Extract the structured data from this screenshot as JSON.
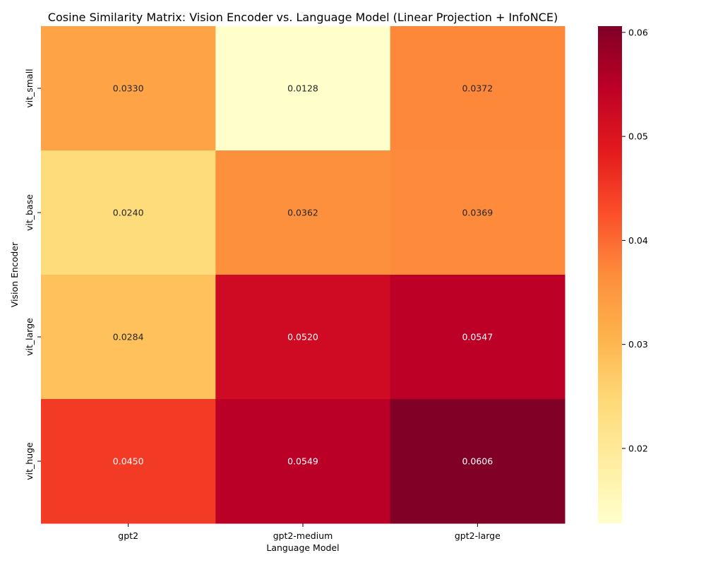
{
  "chart_data": {
    "type": "heatmap",
    "title": "Cosine Similarity Matrix: Vision Encoder vs. Language Model (Linear Projection + InfoNCE)",
    "xlabel": "Language Model",
    "ylabel": "Vision Encoder",
    "x_categories": [
      "gpt2",
      "gpt2-medium",
      "gpt2-large"
    ],
    "y_categories": [
      "vit_small",
      "vit_base",
      "vit_large",
      "vit_huge"
    ],
    "values": [
      [
        0.033,
        0.0128,
        0.0372
      ],
      [
        0.024,
        0.0362,
        0.0369
      ],
      [
        0.0284,
        0.052,
        0.0547
      ],
      [
        0.045,
        0.0549,
        0.0606
      ]
    ],
    "value_labels": [
      [
        "0.0330",
        "0.0128",
        "0.0372"
      ],
      [
        "0.0240",
        "0.0362",
        "0.0369"
      ],
      [
        "0.0284",
        "0.0520",
        "0.0547"
      ],
      [
        "0.0450",
        "0.0549",
        "0.0606"
      ]
    ],
    "colormap": "YlOrRd",
    "color_range": [
      0.0128,
      0.0606
    ],
    "colorbar_ticks": [
      0.02,
      0.03,
      0.04,
      0.05,
      0.06
    ],
    "colorbar_tick_labels": [
      "0.02",
      "0.03",
      "0.04",
      "0.05",
      "0.06"
    ],
    "grid": false,
    "legend": "colorbar-right"
  }
}
